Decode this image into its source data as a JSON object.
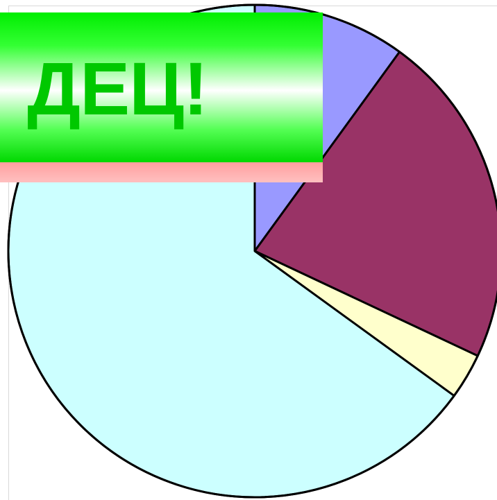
{
  "banner": {
    "text": "ДЕЦ!",
    "green_color": "#00c800",
    "stripe_color": "#ffb3b3"
  },
  "chart_data": {
    "type": "pie",
    "title": "",
    "legend": "none",
    "start_angle_deg": 0,
    "direction": "clockwise",
    "slices": [
      {
        "value": 10,
        "color": "#9999ff"
      },
      {
        "value": 22,
        "color": "#993366"
      },
      {
        "value": 3,
        "color": "#ffffcc"
      },
      {
        "value": 65,
        "color": "#ccffff"
      }
    ]
  }
}
